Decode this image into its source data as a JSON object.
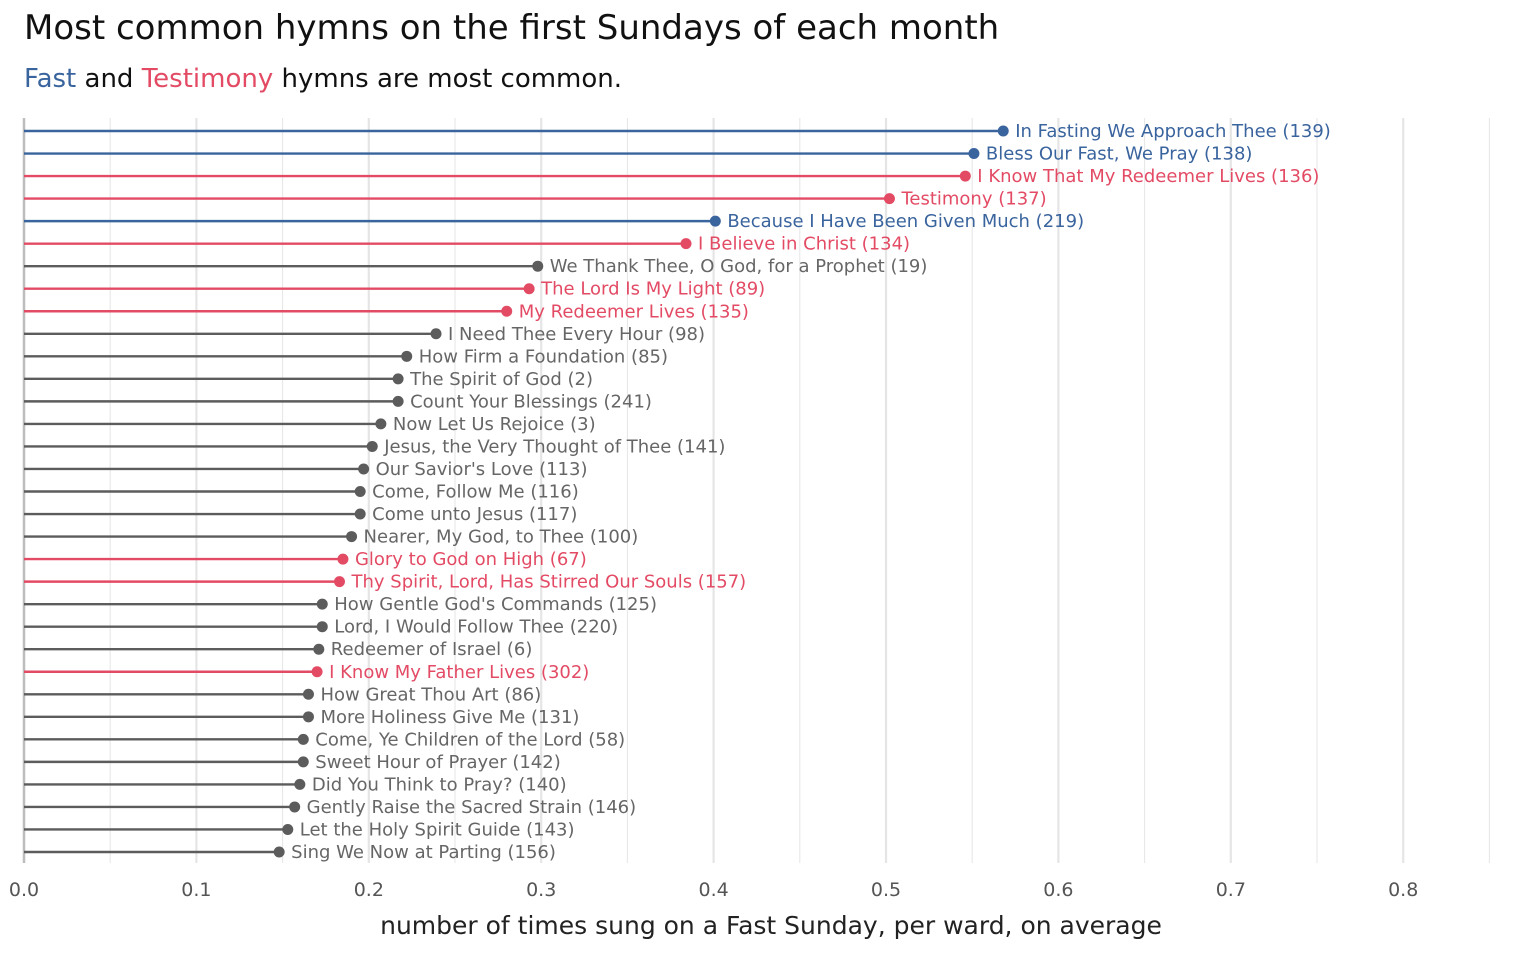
{
  "title": "Most common hymns on the first Sundays of each month",
  "subtitle": {
    "fast": "Fast",
    "and": " and ",
    "testimony": "Testimony",
    "rest": " hymns are most common."
  },
  "colors": {
    "fast": "#3a649e",
    "testimony": "#e34b65",
    "other": "#5c5c5c",
    "grid": "#e5e5e5",
    "label_other": "#666666"
  },
  "chart_data": {
    "type": "lollipop",
    "xlabel": "number of times sung on a Fast Sunday, per ward, on average",
    "ylabel": "",
    "xlim": [
      0,
      0.85
    ],
    "xticks": [
      "0.0",
      "0.1",
      "0.2",
      "0.3",
      "0.4",
      "0.5",
      "0.6",
      "0.7",
      "0.8"
    ],
    "grid": true,
    "points": [
      {
        "label": "In Fasting We Approach Thee (139)",
        "value": 0.568,
        "category": "fast"
      },
      {
        "label": "Bless Our Fast, We Pray (138)",
        "value": 0.551,
        "category": "fast"
      },
      {
        "label": "I Know That My Redeemer Lives (136)",
        "value": 0.546,
        "category": "testimony"
      },
      {
        "label": "Testimony (137)",
        "value": 0.502,
        "category": "testimony"
      },
      {
        "label": "Because I Have Been Given Much (219)",
        "value": 0.401,
        "category": "fast"
      },
      {
        "label": "I Believe in Christ (134)",
        "value": 0.384,
        "category": "testimony"
      },
      {
        "label": "We Thank Thee, O God, for a Prophet (19)",
        "value": 0.298,
        "category": "other"
      },
      {
        "label": "The Lord Is My Light (89)",
        "value": 0.293,
        "category": "testimony"
      },
      {
        "label": "My Redeemer Lives (135)",
        "value": 0.28,
        "category": "testimony"
      },
      {
        "label": "I Need Thee Every Hour (98)",
        "value": 0.239,
        "category": "other"
      },
      {
        "label": "How Firm a Foundation (85)",
        "value": 0.222,
        "category": "other"
      },
      {
        "label": "The Spirit of God (2)",
        "value": 0.217,
        "category": "other"
      },
      {
        "label": "Count Your Blessings (241)",
        "value": 0.217,
        "category": "other"
      },
      {
        "label": "Now Let Us Rejoice (3)",
        "value": 0.207,
        "category": "other"
      },
      {
        "label": "Jesus, the Very Thought of Thee (141)",
        "value": 0.202,
        "category": "other"
      },
      {
        "label": "Our Savior's Love (113)",
        "value": 0.197,
        "category": "other"
      },
      {
        "label": "Come, Follow Me (116)",
        "value": 0.195,
        "category": "other"
      },
      {
        "label": "Come unto Jesus (117)",
        "value": 0.195,
        "category": "other"
      },
      {
        "label": "Nearer, My God, to Thee (100)",
        "value": 0.19,
        "category": "other"
      },
      {
        "label": "Glory to God on High (67)",
        "value": 0.185,
        "category": "testimony"
      },
      {
        "label": "Thy Spirit, Lord, Has Stirred Our Souls (157)",
        "value": 0.183,
        "category": "testimony"
      },
      {
        "label": "How Gentle God's Commands (125)",
        "value": 0.173,
        "category": "other"
      },
      {
        "label": "Lord, I Would Follow Thee (220)",
        "value": 0.173,
        "category": "other"
      },
      {
        "label": "Redeemer of Israel (6)",
        "value": 0.171,
        "category": "other"
      },
      {
        "label": "I Know My Father Lives (302)",
        "value": 0.17,
        "category": "testimony"
      },
      {
        "label": "How Great Thou Art (86)",
        "value": 0.165,
        "category": "other"
      },
      {
        "label": "More Holiness Give Me (131)",
        "value": 0.165,
        "category": "other"
      },
      {
        "label": "Come, Ye Children of the Lord (58)",
        "value": 0.162,
        "category": "other"
      },
      {
        "label": "Sweet Hour of Prayer (142)",
        "value": 0.162,
        "category": "other"
      },
      {
        "label": "Did You Think to Pray? (140)",
        "value": 0.16,
        "category": "other"
      },
      {
        "label": "Gently Raise the Sacred Strain (146)",
        "value": 0.157,
        "category": "other"
      },
      {
        "label": "Let the Holy Spirit Guide (143)",
        "value": 0.153,
        "category": "other"
      },
      {
        "label": "Sing We Now at Parting (156)",
        "value": 0.148,
        "category": "other"
      }
    ]
  }
}
